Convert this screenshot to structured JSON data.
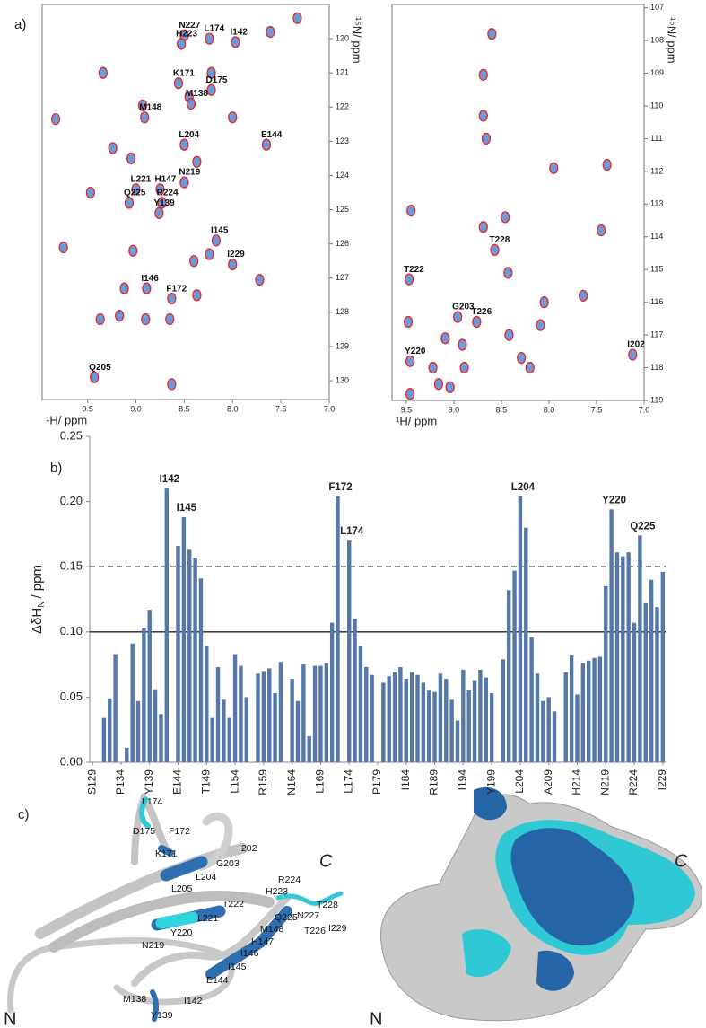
{
  "panel_labels": [
    "a)",
    "b)",
    "c)"
  ],
  "chart_data": [
    {
      "type": "scatter",
      "xlabel": "¹H/ ppm",
      "ylabel": "¹⁵N/ ppm",
      "xlim": [
        9.97,
        7.0
      ],
      "ylim": [
        119.0,
        130.55
      ],
      "xticks": [
        9.5,
        {
          "value": 9,
          "label": "9.0"
        },
        8.5,
        {
          "value": 8,
          "label": "8.0"
        },
        7.5,
        {
          "value": 7,
          "label": "7.0"
        }
      ],
      "yticks": [
        120,
        121,
        122,
        123,
        124,
        125,
        126,
        127,
        128,
        129,
        130
      ],
      "color": "#5b8ed8",
      "edge_color": "#e8251f",
      "x": [
        7.33,
        7.61,
        8.5,
        8.53,
        8.24,
        7.97,
        9.34,
        8.56,
        8.22,
        8.22,
        8.45,
        8.43,
        8.93,
        8.91,
        8.0,
        9.83,
        7.65,
        8.5,
        9.24,
        8.37,
        9.05,
        9.0,
        8.75,
        8.5,
        9.47,
        9.07,
        8.73,
        8.76,
        8.17,
        9.75,
        9.03,
        8.4,
        8.0,
        8.24,
        8.89,
        9.12,
        7.72,
        8.63,
        8.37,
        9.37,
        9.17,
        8.9,
        8.65,
        9.43,
        8.63
      ],
      "values": [
        119.4,
        119.8,
        119.9,
        120.15,
        120.0,
        120.1,
        121.0,
        121.3,
        121.0,
        121.5,
        121.7,
        121.9,
        121.95,
        122.3,
        122.3,
        122.35,
        123.1,
        123.1,
        123.2,
        123.6,
        123.5,
        124.4,
        124.4,
        124.2,
        124.5,
        124.8,
        124.8,
        125.1,
        125.9,
        126.1,
        126.2,
        126.5,
        126.6,
        126.3,
        127.3,
        127.3,
        127.05,
        127.6,
        127.5,
        128.2,
        128.1,
        128.2,
        128.2,
        129.9,
        130.1
      ],
      "point_labels": [
        null,
        null,
        "N227",
        "H223",
        "L174",
        "I142",
        null,
        "K171",
        null,
        "D175",
        null,
        "M138",
        null,
        "M148",
        null,
        null,
        "E144",
        "L204",
        null,
        null,
        null,
        "L221",
        "H147",
        "N219",
        null,
        "Q225",
        "R224",
        "Y139",
        "I145",
        null,
        null,
        null,
        "I229",
        null,
        "I146",
        null,
        null,
        "F172",
        null,
        null,
        null,
        null,
        null,
        "Q205",
        null
      ]
    },
    {
      "type": "scatter",
      "xlabel": "¹H/ ppm",
      "ylabel": "¹⁵N/ ppm",
      "xlim": [
        9.65,
        7.0
      ],
      "ylim": [
        106.9,
        119.0
      ],
      "xticks": [
        9.5,
        {
          "value": 9,
          "label": "9.0"
        },
        8.5,
        {
          "value": 8,
          "label": "8.0"
        },
        7.5,
        {
          "value": 7,
          "label": "7.0"
        }
      ],
      "yticks": [
        107,
        108,
        109,
        110,
        111,
        112,
        113,
        114,
        115,
        116,
        117,
        118,
        119
      ],
      "color": "#5b8ed8",
      "edge_color": "#e8251f",
      "x": [
        8.6,
        8.69,
        8.69,
        8.66,
        7.39,
        7.95,
        9.45,
        8.46,
        8.69,
        7.45,
        8.57,
        9.47,
        8.43,
        8.05,
        7.64,
        9.48,
        8.96,
        8.76,
        9.09,
        8.91,
        8.42,
        8.09,
        9.46,
        9.22,
        8.89,
        8.29,
        8.2,
        7.12,
        9.16,
        9.04,
        9.46
      ],
      "values": [
        107.8,
        109.05,
        110.3,
        111.0,
        111.8,
        111.9,
        113.2,
        113.4,
        113.7,
        113.8,
        114.4,
        115.3,
        115.1,
        116.0,
        115.8,
        116.6,
        116.45,
        116.6,
        117.1,
        117.3,
        117.0,
        116.7,
        117.8,
        118.0,
        118.0,
        117.7,
        118.0,
        117.6,
        118.5,
        118.6,
        118.8
      ],
      "point_labels": [
        null,
        null,
        null,
        null,
        null,
        null,
        null,
        null,
        null,
        null,
        "T228",
        "T222",
        null,
        null,
        null,
        null,
        "G203",
        "T226",
        null,
        null,
        null,
        null,
        "Y220",
        null,
        null,
        null,
        null,
        "I202",
        null,
        null,
        null
      ]
    },
    {
      "type": "bar",
      "ylabel": {
        "main": "ΔδH",
        "sub": "N",
        "unit": "/ ppm"
      },
      "ylim": [
        0,
        0.25
      ],
      "yticks": [
        {
          "value": 0,
          "label": "0.00"
        },
        0.05,
        {
          "value": 0.1,
          "label": "0.10"
        },
        0.15,
        {
          "value": 0.2,
          "label": "0.20"
        },
        0.25
      ],
      "color": "#5578a8",
      "hlines": [
        {
          "value": 0.1,
          "style": "solid"
        },
        {
          "value": 0.15,
          "style": "dashed"
        }
      ],
      "categories": [
        "S129",
        null,
        null,
        null,
        null,
        "P134",
        null,
        null,
        null,
        null,
        "Y139",
        null,
        null,
        null,
        null,
        "E144",
        null,
        null,
        null,
        null,
        "T149",
        null,
        null,
        null,
        null,
        "L154",
        null,
        null,
        null,
        null,
        "R159",
        null,
        null,
        null,
        null,
        "N164",
        null,
        null,
        null,
        null,
        "L169",
        null,
        null,
        null,
        null,
        "L174",
        null,
        null,
        null,
        null,
        "P179",
        null,
        null,
        null,
        null,
        "I184",
        null,
        null,
        null,
        null,
        "R189",
        null,
        null,
        null,
        null,
        "I194",
        null,
        null,
        null,
        null,
        "Y199",
        null,
        null,
        null,
        null,
        "L204",
        null,
        null,
        null,
        null,
        "A209",
        null,
        null,
        null,
        null,
        "H214",
        null,
        null,
        null,
        null,
        "N219",
        null,
        null,
        null,
        null,
        "R224",
        null,
        null,
        null,
        null,
        "I229"
      ],
      "values": [
        null,
        null,
        0.034,
        0.049,
        0.083,
        null,
        0.011,
        0.091,
        0.047,
        0.103,
        0.117,
        0.056,
        0.037,
        0.21,
        null,
        0.166,
        0.188,
        0.163,
        0.157,
        0.141,
        0.089,
        0.034,
        0.073,
        0.048,
        0.034,
        0.083,
        0.074,
        0.05,
        null,
        0.068,
        0.07,
        0.072,
        0.053,
        0.077,
        null,
        0.064,
        0.047,
        0.075,
        0.02,
        0.074,
        0.074,
        0.076,
        0.107,
        0.204,
        null,
        0.17,
        0.11,
        0.089,
        0.073,
        0.067,
        null,
        0.061,
        0.066,
        0.069,
        0.073,
        0.064,
        0.069,
        0.067,
        0.061,
        0.055,
        0.054,
        0.068,
        0.064,
        0.048,
        0.032,
        0.071,
        0.055,
        0.063,
        0.071,
        0.065,
        0.053,
        null,
        0.079,
        0.132,
        0.147,
        0.204,
        0.18,
        0.096,
        0.068,
        0.047,
        0.05,
        0.039,
        null,
        0.069,
        0.082,
        0.052,
        0.076,
        0.078,
        0.08,
        0.081,
        0.135,
        0.194,
        0.161,
        0.158,
        0.161,
        0.107,
        0.174,
        0.122,
        0.14,
        0.119,
        0.146
      ],
      "bar_labels": [
        null,
        null,
        null,
        null,
        null,
        null,
        null,
        null,
        null,
        null,
        null,
        null,
        null,
        "I142",
        null,
        null,
        "I145",
        null,
        null,
        null,
        null,
        null,
        null,
        null,
        null,
        null,
        null,
        null,
        null,
        null,
        null,
        null,
        null,
        null,
        null,
        null,
        null,
        null,
        null,
        null,
        null,
        null,
        null,
        "F172",
        null,
        "L174",
        null,
        null,
        null,
        null,
        null,
        null,
        null,
        null,
        null,
        null,
        null,
        null,
        null,
        null,
        null,
        null,
        null,
        null,
        null,
        null,
        null,
        null,
        null,
        null,
        null,
        null,
        null,
        null,
        null,
        "L204",
        null,
        null,
        null,
        null,
        null,
        null,
        null,
        null,
        null,
        null,
        null,
        null,
        null,
        null,
        null,
        "Y220",
        null,
        null,
        null,
        null,
        "Q225",
        null,
        null,
        null,
        null
      ]
    }
  ],
  "structure": {
    "cartoon_labels": [
      "L174",
      "D175",
      "F172",
      "K171",
      "I202",
      "G203",
      "L204",
      "L205",
      "R224",
      "H223",
      "T228",
      "N227",
      "T222",
      "Q225",
      "I229",
      "L221",
      "M148",
      "T226",
      "Y220",
      "H147",
      "N219",
      "I146",
      "I145",
      "E144",
      "M138",
      "I142",
      "Y139"
    ],
    "cartoon_c": "C",
    "cartoon_n": "N",
    "surface_c": "C",
    "surface_n": "N"
  }
}
